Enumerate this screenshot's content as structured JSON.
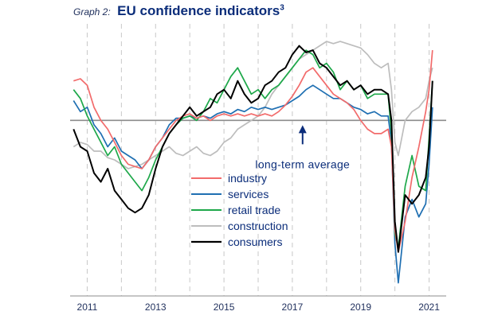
{
  "header": {
    "graph_label": "Graph 2:",
    "title": "EU confidence indicators",
    "superscript": "3"
  },
  "chart_data": {
    "type": "line",
    "title": "EU confidence indicators",
    "xlabel": "",
    "ylabel": "",
    "x_tick_labels": [
      "2011",
      "2013",
      "2015",
      "2017",
      "2019",
      "2021"
    ],
    "x_range": [
      2010.5,
      2021.5
    ],
    "y_range": [
      -4.0,
      2.2
    ],
    "grid": "vertical dashed lines at year boundaries",
    "legend_position": "lower-center",
    "reference_line": {
      "value": 0,
      "label": "long-term average",
      "color": "#8c8c8c"
    },
    "annotation": {
      "text": "long-term average",
      "x": 2017.3
    },
    "series": [
      {
        "name": "industry",
        "color": "#f26b6b",
        "points": [
          [
            2010.6,
            0.9
          ],
          [
            2010.8,
            0.95
          ],
          [
            2011.0,
            0.8
          ],
          [
            2011.2,
            0.3
          ],
          [
            2011.4,
            0.0
          ],
          [
            2011.6,
            -0.2
          ],
          [
            2011.8,
            -0.5
          ],
          [
            2012.0,
            -0.8
          ],
          [
            2012.2,
            -1.0
          ],
          [
            2012.4,
            -1.05
          ],
          [
            2012.6,
            -1.1
          ],
          [
            2012.8,
            -0.9
          ],
          [
            2013.0,
            -0.6
          ],
          [
            2013.2,
            -0.4
          ],
          [
            2013.4,
            -0.2
          ],
          [
            2013.6,
            0.0
          ],
          [
            2013.8,
            0.1
          ],
          [
            2014.0,
            0.15
          ],
          [
            2014.2,
            0.05
          ],
          [
            2014.4,
            0.1
          ],
          [
            2014.6,
            0.0
          ],
          [
            2014.8,
            0.1
          ],
          [
            2015.0,
            0.15
          ],
          [
            2015.2,
            0.1
          ],
          [
            2015.4,
            0.15
          ],
          [
            2015.6,
            0.1
          ],
          [
            2015.8,
            0.15
          ],
          [
            2016.0,
            0.1
          ],
          [
            2016.2,
            0.15
          ],
          [
            2016.4,
            0.1
          ],
          [
            2016.6,
            0.2
          ],
          [
            2016.8,
            0.35
          ],
          [
            2017.0,
            0.55
          ],
          [
            2017.2,
            0.8
          ],
          [
            2017.4,
            1.1
          ],
          [
            2017.6,
            1.2
          ],
          [
            2017.8,
            1.0
          ],
          [
            2018.0,
            0.8
          ],
          [
            2018.2,
            0.6
          ],
          [
            2018.4,
            0.5
          ],
          [
            2018.6,
            0.4
          ],
          [
            2018.8,
            0.25
          ],
          [
            2019.0,
            0.0
          ],
          [
            2019.2,
            -0.2
          ],
          [
            2019.4,
            -0.3
          ],
          [
            2019.6,
            -0.3
          ],
          [
            2019.8,
            -0.2
          ],
          [
            2019.9,
            -0.6
          ],
          [
            2020.0,
            -2.5
          ],
          [
            2020.1,
            -3.0
          ],
          [
            2020.3,
            -2.3
          ],
          [
            2020.5,
            -1.3
          ],
          [
            2020.7,
            -0.6
          ],
          [
            2020.9,
            0.2
          ],
          [
            2021.0,
            0.7
          ],
          [
            2021.1,
            1.6
          ]
        ]
      },
      {
        "name": "services",
        "color": "#1f6fb2",
        "points": [
          [
            2010.6,
            0.45
          ],
          [
            2010.8,
            0.2
          ],
          [
            2011.0,
            0.3
          ],
          [
            2011.2,
            -0.1
          ],
          [
            2011.4,
            -0.3
          ],
          [
            2011.6,
            -0.6
          ],
          [
            2011.8,
            -0.4
          ],
          [
            2012.0,
            -0.7
          ],
          [
            2012.2,
            -0.8
          ],
          [
            2012.4,
            -0.9
          ],
          [
            2012.6,
            -1.1
          ],
          [
            2012.8,
            -0.9
          ],
          [
            2013.0,
            -0.6
          ],
          [
            2013.2,
            -0.4
          ],
          [
            2013.4,
            -0.1
          ],
          [
            2013.6,
            0.05
          ],
          [
            2013.8,
            0.05
          ],
          [
            2014.0,
            0.1
          ],
          [
            2014.2,
            0.05
          ],
          [
            2014.4,
            0.1
          ],
          [
            2014.6,
            0.05
          ],
          [
            2014.8,
            0.15
          ],
          [
            2015.0,
            0.2
          ],
          [
            2015.2,
            0.15
          ],
          [
            2015.4,
            0.25
          ],
          [
            2015.6,
            0.2
          ],
          [
            2015.8,
            0.3
          ],
          [
            2016.0,
            0.25
          ],
          [
            2016.2,
            0.3
          ],
          [
            2016.4,
            0.25
          ],
          [
            2016.6,
            0.3
          ],
          [
            2016.8,
            0.35
          ],
          [
            2017.0,
            0.45
          ],
          [
            2017.2,
            0.55
          ],
          [
            2017.4,
            0.7
          ],
          [
            2017.6,
            0.8
          ],
          [
            2017.8,
            0.7
          ],
          [
            2018.0,
            0.6
          ],
          [
            2018.2,
            0.5
          ],
          [
            2018.4,
            0.5
          ],
          [
            2018.6,
            0.4
          ],
          [
            2018.8,
            0.3
          ],
          [
            2019.0,
            0.25
          ],
          [
            2019.2,
            0.15
          ],
          [
            2019.4,
            0.2
          ],
          [
            2019.6,
            0.1
          ],
          [
            2019.8,
            0.1
          ],
          [
            2019.9,
            -0.5
          ],
          [
            2020.0,
            -2.8
          ],
          [
            2020.1,
            -3.7
          ],
          [
            2020.3,
            -2.2
          ],
          [
            2020.5,
            -1.8
          ],
          [
            2020.7,
            -2.2
          ],
          [
            2020.9,
            -1.9
          ],
          [
            2021.0,
            -1.0
          ],
          [
            2021.1,
            0.3
          ]
        ]
      },
      {
        "name": "retail trade",
        "color": "#1ea84a",
        "points": [
          [
            2010.6,
            0.7
          ],
          [
            2010.8,
            0.5
          ],
          [
            2011.0,
            0.1
          ],
          [
            2011.2,
            -0.2
          ],
          [
            2011.4,
            -0.5
          ],
          [
            2011.6,
            -0.8
          ],
          [
            2011.8,
            -0.6
          ],
          [
            2012.0,
            -1.0
          ],
          [
            2012.2,
            -1.2
          ],
          [
            2012.4,
            -1.4
          ],
          [
            2012.6,
            -1.6
          ],
          [
            2012.8,
            -1.3
          ],
          [
            2013.0,
            -0.9
          ],
          [
            2013.2,
            -0.6
          ],
          [
            2013.4,
            -0.3
          ],
          [
            2013.6,
            -0.1
          ],
          [
            2013.8,
            0.05
          ],
          [
            2014.0,
            0.1
          ],
          [
            2014.2,
            0.0
          ],
          [
            2014.4,
            0.2
          ],
          [
            2014.6,
            0.5
          ],
          [
            2014.8,
            0.4
          ],
          [
            2015.0,
            0.7
          ],
          [
            2015.2,
            1.0
          ],
          [
            2015.4,
            1.2
          ],
          [
            2015.6,
            0.9
          ],
          [
            2015.8,
            0.6
          ],
          [
            2016.0,
            0.7
          ],
          [
            2016.2,
            0.5
          ],
          [
            2016.4,
            0.7
          ],
          [
            2016.6,
            0.8
          ],
          [
            2016.8,
            1.0
          ],
          [
            2017.0,
            1.2
          ],
          [
            2017.2,
            1.4
          ],
          [
            2017.4,
            1.6
          ],
          [
            2017.6,
            1.5
          ],
          [
            2017.8,
            1.2
          ],
          [
            2018.0,
            1.3
          ],
          [
            2018.2,
            1.1
          ],
          [
            2018.4,
            0.7
          ],
          [
            2018.6,
            0.9
          ],
          [
            2018.8,
            0.7
          ],
          [
            2019.0,
            0.8
          ],
          [
            2019.2,
            0.5
          ],
          [
            2019.4,
            0.6
          ],
          [
            2019.6,
            0.6
          ],
          [
            2019.8,
            0.6
          ],
          [
            2019.9,
            -0.3
          ],
          [
            2020.0,
            -2.6
          ],
          [
            2020.1,
            -2.9
          ],
          [
            2020.3,
            -1.5
          ],
          [
            2020.5,
            -0.8
          ],
          [
            2020.7,
            -1.5
          ],
          [
            2020.9,
            -1.6
          ],
          [
            2021.0,
            -0.4
          ],
          [
            2021.1,
            0.9
          ]
        ]
      },
      {
        "name": "construction",
        "color": "#bdbdbd",
        "points": [
          [
            2010.6,
            -0.6
          ],
          [
            2010.8,
            -0.5
          ],
          [
            2011.0,
            -0.55
          ],
          [
            2011.2,
            -0.7
          ],
          [
            2011.4,
            -0.7
          ],
          [
            2011.6,
            -0.85
          ],
          [
            2011.8,
            -0.9
          ],
          [
            2012.0,
            -1.0
          ],
          [
            2012.2,
            -1.1
          ],
          [
            2012.4,
            -1.05
          ],
          [
            2012.6,
            -1.0
          ],
          [
            2012.8,
            -0.9
          ],
          [
            2013.0,
            -0.8
          ],
          [
            2013.2,
            -0.7
          ],
          [
            2013.4,
            -0.6
          ],
          [
            2013.6,
            -0.75
          ],
          [
            2013.8,
            -0.8
          ],
          [
            2014.0,
            -0.7
          ],
          [
            2014.2,
            -0.6
          ],
          [
            2014.4,
            -0.75
          ],
          [
            2014.6,
            -0.8
          ],
          [
            2014.8,
            -0.7
          ],
          [
            2015.0,
            -0.5
          ],
          [
            2015.2,
            -0.4
          ],
          [
            2015.4,
            -0.2
          ],
          [
            2015.6,
            -0.1
          ],
          [
            2015.8,
            0.0
          ],
          [
            2016.0,
            0.1
          ],
          [
            2016.2,
            0.3
          ],
          [
            2016.4,
            0.6
          ],
          [
            2016.6,
            0.8
          ],
          [
            2016.8,
            1.0
          ],
          [
            2017.0,
            1.2
          ],
          [
            2017.2,
            1.4
          ],
          [
            2017.4,
            1.5
          ],
          [
            2017.6,
            1.6
          ],
          [
            2017.8,
            1.7
          ],
          [
            2018.0,
            1.8
          ],
          [
            2018.2,
            1.75
          ],
          [
            2018.4,
            1.8
          ],
          [
            2018.6,
            1.75
          ],
          [
            2018.8,
            1.7
          ],
          [
            2019.0,
            1.65
          ],
          [
            2019.2,
            1.5
          ],
          [
            2019.4,
            1.3
          ],
          [
            2019.6,
            1.2
          ],
          [
            2019.8,
            1.3
          ],
          [
            2019.9,
            0.7
          ],
          [
            2020.0,
            -0.5
          ],
          [
            2020.1,
            -0.8
          ],
          [
            2020.3,
            0.0
          ],
          [
            2020.5,
            0.2
          ],
          [
            2020.7,
            0.3
          ],
          [
            2020.9,
            0.5
          ],
          [
            2021.0,
            0.9
          ],
          [
            2021.1,
            1.2
          ]
        ]
      },
      {
        "name": "consumers",
        "color": "#000000",
        "points": [
          [
            2010.6,
            -0.2
          ],
          [
            2010.8,
            -0.6
          ],
          [
            2011.0,
            -0.7
          ],
          [
            2011.2,
            -1.2
          ],
          [
            2011.4,
            -1.4
          ],
          [
            2011.6,
            -1.1
          ],
          [
            2011.8,
            -1.6
          ],
          [
            2012.0,
            -1.8
          ],
          [
            2012.2,
            -2.0
          ],
          [
            2012.4,
            -2.1
          ],
          [
            2012.6,
            -2.0
          ],
          [
            2012.8,
            -1.7
          ],
          [
            2013.0,
            -1.1
          ],
          [
            2013.2,
            -0.6
          ],
          [
            2013.4,
            -0.3
          ],
          [
            2013.6,
            -0.1
          ],
          [
            2013.8,
            0.1
          ],
          [
            2014.0,
            0.3
          ],
          [
            2014.2,
            0.1
          ],
          [
            2014.4,
            0.2
          ],
          [
            2014.6,
            0.3
          ],
          [
            2014.8,
            0.6
          ],
          [
            2015.0,
            0.7
          ],
          [
            2015.2,
            0.5
          ],
          [
            2015.4,
            0.9
          ],
          [
            2015.6,
            0.6
          ],
          [
            2015.8,
            0.4
          ],
          [
            2016.0,
            0.5
          ],
          [
            2016.2,
            0.8
          ],
          [
            2016.4,
            0.9
          ],
          [
            2016.6,
            1.1
          ],
          [
            2016.8,
            1.2
          ],
          [
            2017.0,
            1.5
          ],
          [
            2017.2,
            1.7
          ],
          [
            2017.4,
            1.55
          ],
          [
            2017.6,
            1.6
          ],
          [
            2017.8,
            1.3
          ],
          [
            2018.0,
            1.2
          ],
          [
            2018.2,
            1.0
          ],
          [
            2018.4,
            0.8
          ],
          [
            2018.6,
            0.9
          ],
          [
            2018.8,
            0.7
          ],
          [
            2019.0,
            0.8
          ],
          [
            2019.2,
            0.6
          ],
          [
            2019.4,
            0.7
          ],
          [
            2019.6,
            0.7
          ],
          [
            2019.8,
            0.6
          ],
          [
            2019.9,
            0.0
          ],
          [
            2020.0,
            -2.3
          ],
          [
            2020.1,
            -3.0
          ],
          [
            2020.3,
            -1.7
          ],
          [
            2020.5,
            -1.9
          ],
          [
            2020.7,
            -1.7
          ],
          [
            2020.9,
            -1.3
          ],
          [
            2021.0,
            -0.6
          ],
          [
            2021.1,
            0.9
          ]
        ]
      }
    ]
  }
}
